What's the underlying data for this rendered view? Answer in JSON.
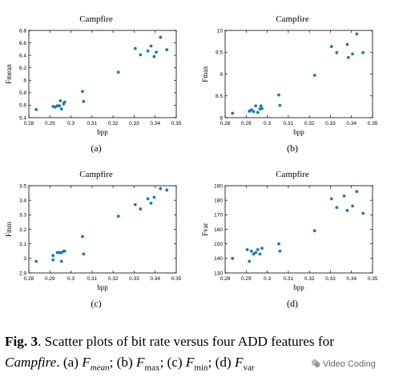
{
  "point_color": "#1f77b4",
  "chart_data": [
    {
      "type": "scatter",
      "title": "Campfire",
      "xlabel": "bpp",
      "ylabel": "Fmean",
      "sub_label": "(a)",
      "xlim": [
        0.28,
        0.35
      ],
      "ylim": [
        5.4,
        6.8
      ],
      "xticks": [
        "0.28",
        "0.29",
        "0.3",
        "0.31",
        "0.32",
        "0.33",
        "0.34",
        "0.35"
      ],
      "yticks": [
        "5.4",
        "5.6",
        "5.8",
        "6",
        "6.2",
        "6.4",
        "6.6",
        "6.8"
      ],
      "x": [
        0.2835,
        0.2915,
        0.2925,
        0.2935,
        0.2945,
        0.295,
        0.2955,
        0.2965,
        0.297,
        0.3055,
        0.306,
        0.3225,
        0.3305,
        0.333,
        0.3365,
        0.338,
        0.3395,
        0.3405,
        0.3425,
        0.3455
      ],
      "y": [
        5.53,
        5.58,
        5.57,
        5.59,
        5.59,
        5.67,
        5.54,
        5.62,
        5.65,
        5.82,
        5.66,
        6.13,
        6.51,
        6.41,
        6.47,
        6.55,
        6.38,
        6.45,
        6.69,
        6.49
      ]
    },
    {
      "type": "scatter",
      "title": "Campfire",
      "xlabel": "bpp",
      "ylabel": "Fmax",
      "sub_label": "(b)",
      "xlim": [
        0.28,
        0.35
      ],
      "ylim": [
        8,
        10
      ],
      "xticks": [
        "0.28",
        "0.29",
        "0.3",
        "0.31",
        "0.32",
        "0.33",
        "0.34",
        "0.35"
      ],
      "yticks": [
        "8",
        "8.5",
        "9",
        "9.5",
        "10"
      ],
      "x": [
        0.2835,
        0.2915,
        0.2925,
        0.2935,
        0.2945,
        0.2955,
        0.2965,
        0.297,
        0.2975,
        0.3055,
        0.306,
        0.3225,
        0.3305,
        0.333,
        0.338,
        0.3385,
        0.3405,
        0.3425,
        0.3455
      ],
      "y": [
        8.1,
        8.15,
        8.18,
        8.14,
        8.27,
        8.12,
        8.2,
        8.27,
        8.21,
        8.52,
        8.28,
        8.97,
        9.63,
        9.49,
        9.68,
        9.38,
        9.46,
        9.92,
        9.49
      ]
    },
    {
      "type": "scatter",
      "title": "Campfire",
      "xlabel": "bpp",
      "ylabel": "Fmin",
      "sub_label": "(c)",
      "xlim": [
        0.28,
        0.35
      ],
      "ylim": [
        2.9,
        3.5
      ],
      "xticks": [
        "0.28",
        "0.29",
        "0.3",
        "0.31",
        "0.32",
        "0.33",
        "0.34",
        "0.35"
      ],
      "yticks": [
        "2.9",
        "3",
        "3.1",
        "3.2",
        "3.3",
        "3.4",
        "3.5"
      ],
      "x": [
        0.2835,
        0.2915,
        0.2915,
        0.2935,
        0.2945,
        0.2955,
        0.2955,
        0.2965,
        0.297,
        0.3055,
        0.306,
        0.3225,
        0.3305,
        0.333,
        0.3365,
        0.338,
        0.3395,
        0.3425,
        0.3455
      ],
      "y": [
        2.98,
        2.99,
        3.02,
        3.04,
        3.04,
        2.98,
        3.04,
        3.05,
        3.05,
        3.15,
        3.03,
        3.29,
        3.37,
        3.34,
        3.41,
        3.38,
        3.42,
        3.48,
        3.47
      ]
    },
    {
      "type": "scatter",
      "title": "Campfire",
      "xlabel": "bpp",
      "ylabel": "Fvar",
      "sub_label": "(d)",
      "xlim": [
        0.28,
        0.35
      ],
      "ylim": [
        130,
        190
      ],
      "xticks": [
        "0.28",
        "0.29",
        "0.3",
        "0.31",
        "0.32",
        "0.33",
        "0.34",
        "0.35"
      ],
      "yticks": [
        "130",
        "140",
        "150",
        "160",
        "170",
        "180",
        "190"
      ],
      "x": [
        0.2835,
        0.2905,
        0.2915,
        0.2925,
        0.2935,
        0.2945,
        0.2955,
        0.2965,
        0.2975,
        0.3055,
        0.306,
        0.3225,
        0.3305,
        0.333,
        0.3365,
        0.338,
        0.3405,
        0.3425,
        0.3455
      ],
      "y": [
        140,
        146,
        138,
        145,
        143,
        144,
        146,
        143,
        147,
        150,
        145,
        159,
        181,
        175,
        183,
        173,
        176,
        186,
        171
      ]
    }
  ],
  "caption": {
    "fig_label": "Fig. 3",
    "line1_text": ". Scatter plots of bit rate versus four ADD features for",
    "line2_name": "Campfire",
    "line2_text": ". (a) ",
    "items": [
      "F",
      "mean",
      "; (b) ",
      "F",
      "max",
      "; (c) ",
      "F",
      "min",
      "; (d) ",
      "F",
      "var"
    ]
  },
  "watermark": "Video Coding"
}
